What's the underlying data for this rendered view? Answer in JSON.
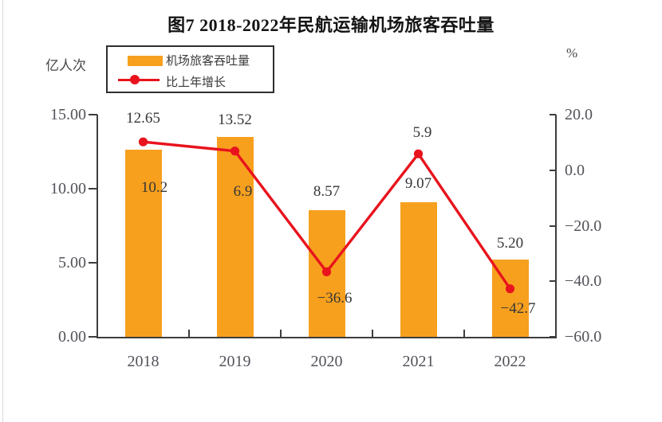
{
  "title": "图7 2018-2022年民航运输机场旅客吞吐量",
  "legend": {
    "items": [
      {
        "label": "机场旅客吞吐量",
        "type": "bar",
        "color": "#F7A01E"
      },
      {
        "label": "比上年增长",
        "type": "line",
        "color": "#E8131D"
      }
    ]
  },
  "axes": {
    "left_unit": "亿人次",
    "right_unit": "%",
    "left_tick_labels": [
      "15.00",
      "10.00",
      "5.00",
      "0.00"
    ],
    "right_tick_labels": [
      "20.0",
      "0.0",
      "-20.0",
      "-40.0",
      "-60.0"
    ]
  },
  "chart_data": {
    "type": "bar",
    "title": "图7 2018-2022年民航运输机场旅客吞吐量",
    "categories": [
      "2018",
      "2019",
      "2020",
      "2021",
      "2022"
    ],
    "series": [
      {
        "name": "机场旅客吞吐量",
        "type": "bar",
        "axis": "left",
        "values": [
          12.65,
          13.52,
          8.57,
          9.07,
          5.2
        ],
        "labels": [
          "12.65",
          "13.52",
          "8.57",
          "9.07",
          "5.20"
        ],
        "color": "#F7A01E"
      },
      {
        "name": "比上年增长",
        "type": "line",
        "axis": "right",
        "values": [
          10.2,
          6.9,
          -36.6,
          5.9,
          -42.7
        ],
        "labels": [
          "10.2",
          "6.9",
          "-36.6",
          "5.9",
          "-42.7"
        ],
        "color": "#E8131D"
      }
    ],
    "left_axis": {
      "label": "亿人次",
      "range": [
        0,
        15
      ],
      "ticks": [
        15,
        10,
        5,
        0
      ]
    },
    "right_axis": {
      "label": "%",
      "range": [
        -60,
        20
      ],
      "ticks": [
        20,
        0,
        -20,
        -40,
        -60
      ]
    },
    "grid": false,
    "legend_position": "top-left"
  }
}
